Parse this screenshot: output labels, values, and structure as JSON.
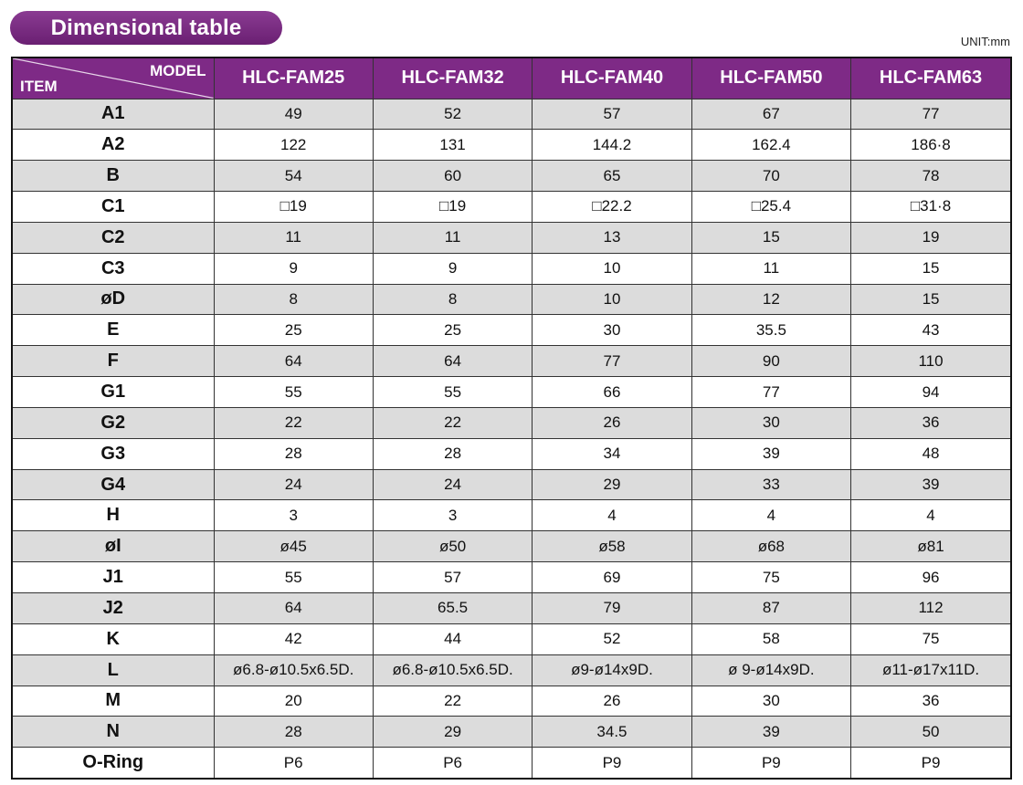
{
  "title": "Dimensional table",
  "unit": "UNIT:mm",
  "header": {
    "corner_model": "MODEL",
    "corner_item": "ITEM",
    "models": [
      "HLC-FAM25",
      "HLC-FAM32",
      "HLC-FAM40",
      "HLC-FAM50",
      "HLC-FAM63"
    ]
  },
  "rows": [
    {
      "item": "A1",
      "values": [
        "49",
        "52",
        "57",
        "67",
        "77"
      ]
    },
    {
      "item": "A2",
      "values": [
        "122",
        "131",
        "144.2",
        "162.4",
        "186·8"
      ]
    },
    {
      "item": "B",
      "values": [
        "54",
        "60",
        "65",
        "70",
        "78"
      ]
    },
    {
      "item": "C1",
      "values": [
        "□19",
        "□19",
        "□22.2",
        "□25.4",
        "□31·8"
      ]
    },
    {
      "item": "C2",
      "values": [
        "11",
        "11",
        "13",
        "15",
        "19"
      ]
    },
    {
      "item": "C3",
      "values": [
        "9",
        "9",
        "10",
        "11",
        "15"
      ]
    },
    {
      "item": "øD",
      "values": [
        "8",
        "8",
        "10",
        "12",
        "15"
      ]
    },
    {
      "item": "E",
      "values": [
        "25",
        "25",
        "30",
        "35.5",
        "43"
      ]
    },
    {
      "item": "F",
      "values": [
        "64",
        "64",
        "77",
        "90",
        "110"
      ]
    },
    {
      "item": "G1",
      "values": [
        "55",
        "55",
        "66",
        "77",
        "94"
      ]
    },
    {
      "item": "G2",
      "values": [
        "22",
        "22",
        "26",
        "30",
        "36"
      ]
    },
    {
      "item": "G3",
      "values": [
        "28",
        "28",
        "34",
        "39",
        "48"
      ]
    },
    {
      "item": "G4",
      "values": [
        "24",
        "24",
        "29",
        "33",
        "39"
      ]
    },
    {
      "item": "H",
      "values": [
        "3",
        "3",
        "4",
        "4",
        "4"
      ]
    },
    {
      "item": "øI",
      "values": [
        "ø45",
        "ø50",
        "ø58",
        "ø68",
        "ø81"
      ]
    },
    {
      "item": "J1",
      "values": [
        "55",
        "57",
        "69",
        "75",
        "96"
      ]
    },
    {
      "item": "J2",
      "values": [
        "64",
        "65.5",
        "79",
        "87",
        "112"
      ]
    },
    {
      "item": "K",
      "values": [
        "42",
        "44",
        "52",
        "58",
        "75"
      ]
    },
    {
      "item": "L",
      "values": [
        "ø6.8-ø10.5x6.5D.",
        "ø6.8-ø10.5x6.5D.",
        "ø9-ø14x9D.",
        "ø 9-ø14x9D.",
        "ø11-ø17x11D."
      ]
    },
    {
      "item": "M",
      "values": [
        "20",
        "22",
        "26",
        "30",
        "36"
      ]
    },
    {
      "item": "N",
      "values": [
        "28",
        "29",
        "34.5",
        "39",
        "50"
      ]
    },
    {
      "item": "O-Ring",
      "values": [
        "P6",
        "P6",
        "P9",
        "P9",
        "P9"
      ]
    }
  ]
}
